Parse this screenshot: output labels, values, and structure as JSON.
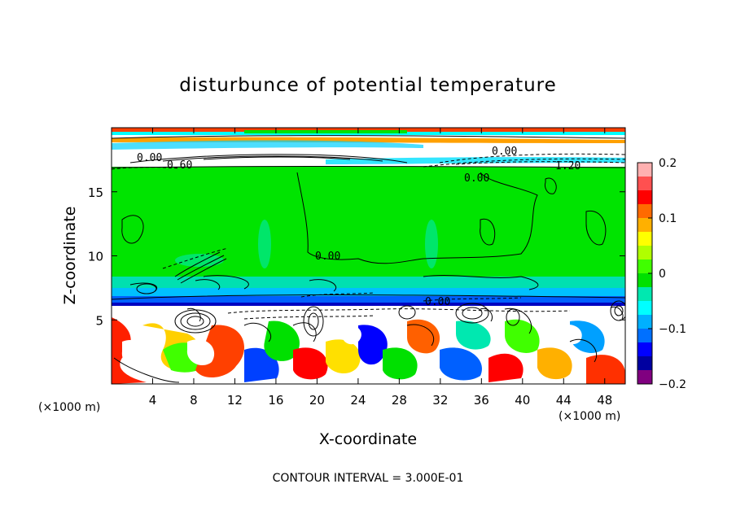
{
  "chart_data": {
    "type": "heatmap",
    "title": "disturbunce of potential temperature",
    "xlabel": "X-coordinate",
    "ylabel": "Z-coordinate",
    "x_unit": "(×1000 m)",
    "y_unit": "(×1000 m)",
    "xlim": [
      0,
      50
    ],
    "ylim": [
      0,
      20
    ],
    "x_ticks": [
      4,
      8,
      12,
      16,
      20,
      24,
      28,
      32,
      36,
      40,
      44,
      48
    ],
    "y_ticks": [
      5,
      10,
      15
    ],
    "colorbar": {
      "range": [
        -0.2,
        0.2
      ],
      "tick_values": [
        0.2,
        0.1,
        0,
        -0.1,
        -0.2
      ],
      "tick_labels": [
        "0.2",
        "0.1",
        "0",
        "−0.1",
        "−0.2"
      ],
      "colors": [
        "#ffb0b0",
        "#ff5050",
        "#ff0000",
        "#ff6a00",
        "#ffb000",
        "#ffff00",
        "#b0ff00",
        "#40ff00",
        "#00e000",
        "#00e8b0",
        "#00ffff",
        "#00b0ff",
        "#0070ff",
        "#0000ff",
        "#0000a0",
        "#800080"
      ]
    },
    "contour_labels": [
      "0.00",
      "0.60",
      "0.00",
      "0.00",
      "1.20",
      "0.00",
      "0.00"
    ],
    "footer": "CONTOUR INTERVAL = 3.000E-01"
  }
}
